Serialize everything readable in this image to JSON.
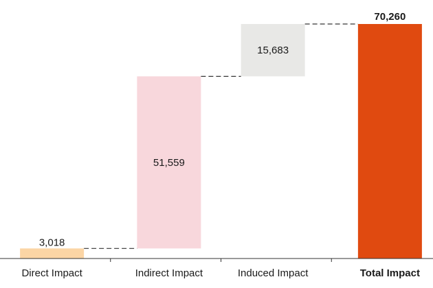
{
  "chart_data": {
    "type": "bar",
    "subtype": "waterfall",
    "title": "",
    "xlabel": "",
    "ylabel": "",
    "ylim": [
      0,
      70260
    ],
    "grid": false,
    "legend": "none",
    "categories": [
      "Direct Impact",
      "Indirect Impact",
      "Induced Impact",
      "Total Impact"
    ],
    "values": [
      3018,
      51559,
      15683,
      70260
    ],
    "value_labels": [
      "3,018",
      "51,559",
      "15,683",
      "70,260"
    ],
    "is_total": [
      false,
      false,
      false,
      true
    ],
    "colors": [
      "#fbd5a5",
      "#f8d7dc",
      "#e8e8e6",
      "#e04a10"
    ],
    "connector_color": "#333333"
  }
}
